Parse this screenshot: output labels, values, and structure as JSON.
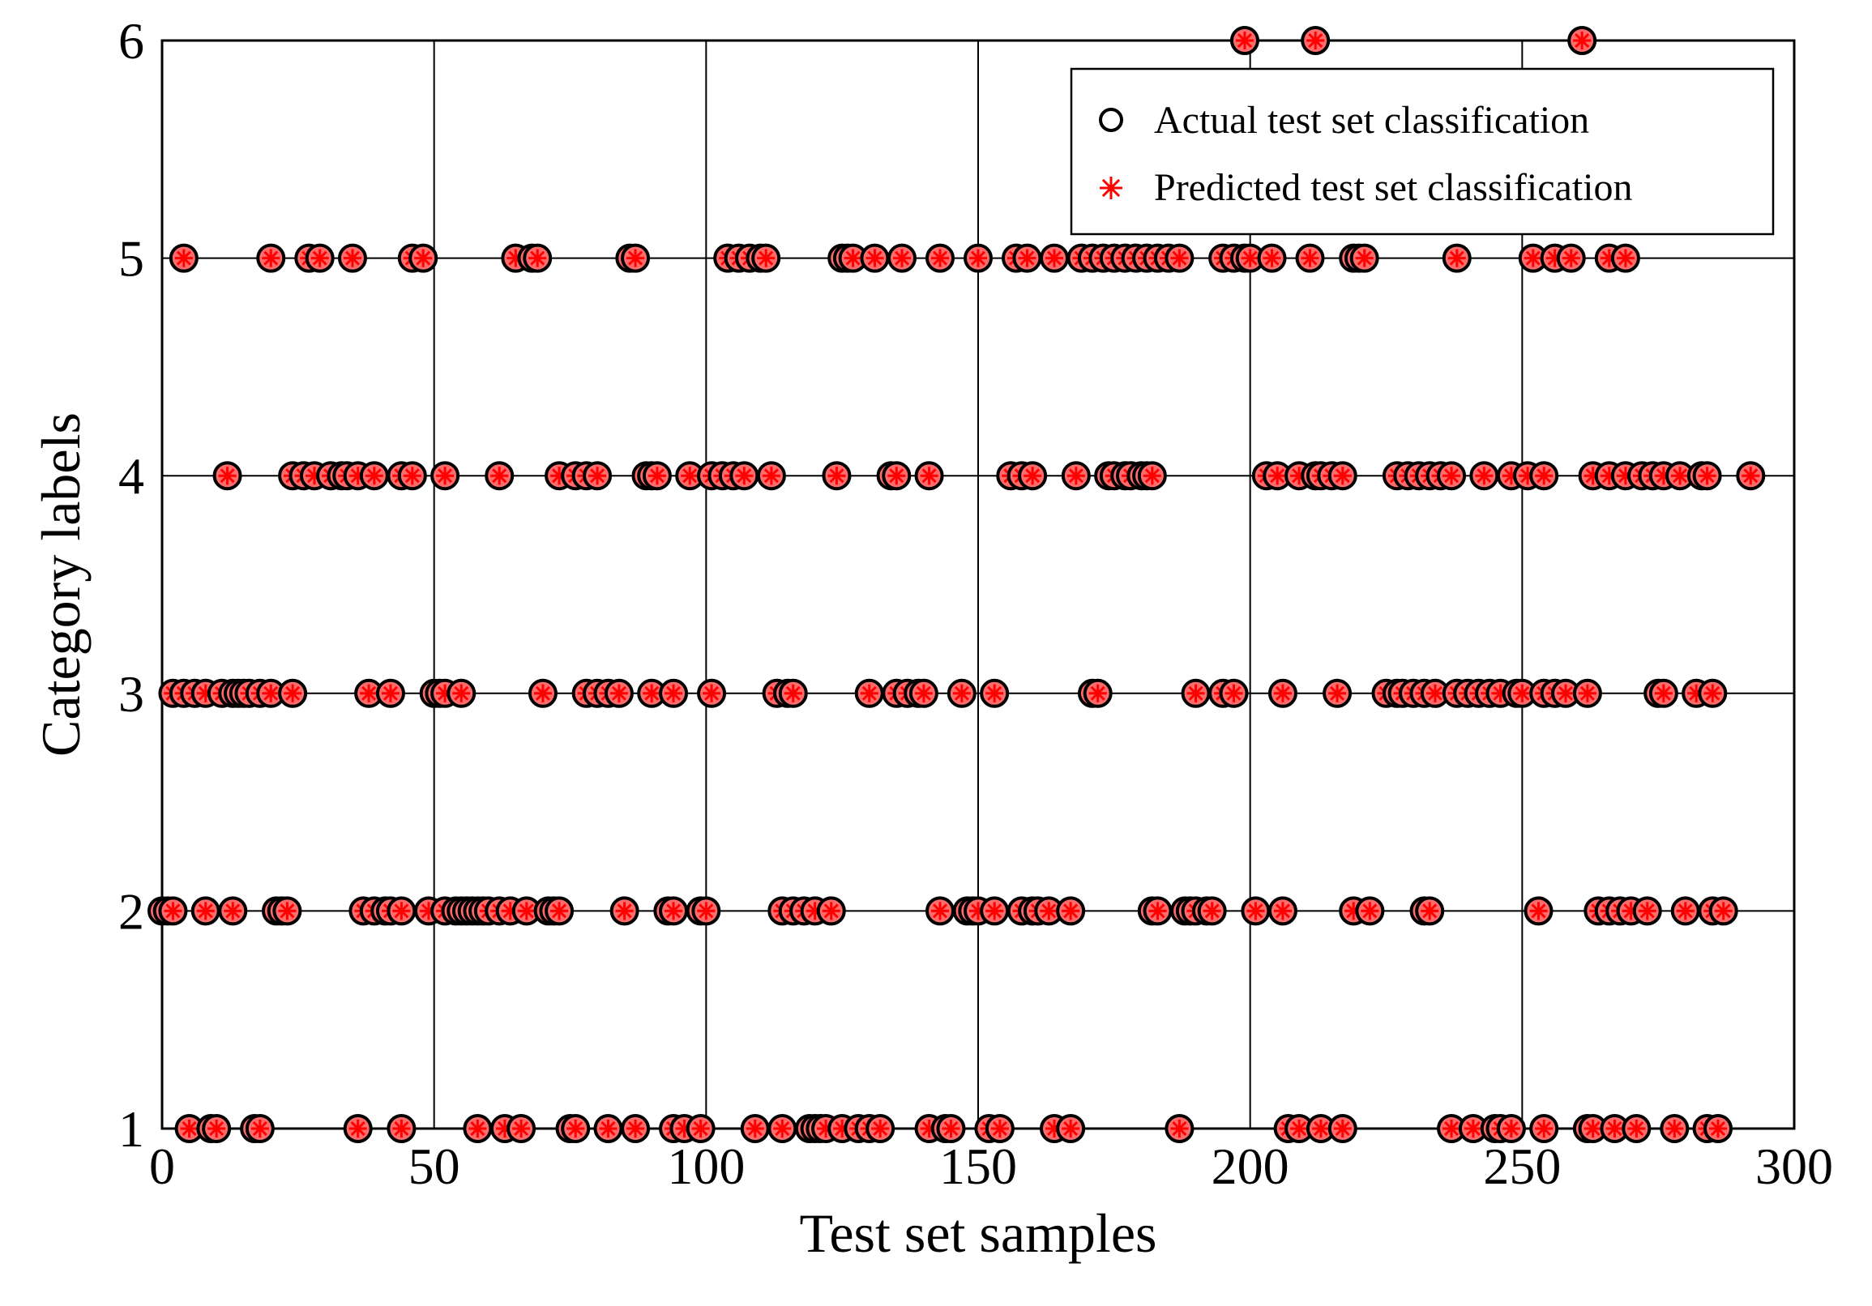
{
  "chart_data": {
    "type": "scatter",
    "xlabel": "Test set samples",
    "ylabel": "Category labels",
    "xlim": [
      0,
      300
    ],
    "ylim": [
      1,
      6
    ],
    "xticks": [
      "0",
      "50",
      "100",
      "150",
      "200",
      "250",
      "300"
    ],
    "yticks": [
      "1",
      "2",
      "3",
      "4",
      "5",
      "6"
    ],
    "grid": true,
    "legend_position": "top-right",
    "colors": {
      "actual": "#000000",
      "predicted": "#ff0000",
      "marker_fill": "#ff6a6a"
    },
    "series": [
      {
        "name": "Actual test set classification",
        "marker": "circle"
      },
      {
        "name": "Predicted test set classification",
        "marker": "asterisk"
      }
    ],
    "points": [
      {
        "label": 6,
        "x": [
          199,
          212,
          261
        ]
      },
      {
        "label": 5,
        "x": [
          4,
          20,
          27,
          29,
          35,
          46,
          48,
          65,
          68,
          69,
          86,
          87,
          104,
          106,
          108,
          110,
          111,
          125,
          126,
          127,
          131,
          136,
          143,
          150,
          157,
          159,
          164,
          169,
          171,
          173,
          175,
          177,
          179,
          181,
          183,
          185,
          187,
          195,
          197,
          199,
          200,
          204,
          211,
          219,
          220,
          221,
          238,
          252,
          256,
          259,
          266,
          269
        ]
      },
      {
        "label": 4,
        "x": [
          12,
          24,
          26,
          28,
          31,
          33,
          34,
          36,
          39,
          44,
          46,
          52,
          62,
          73,
          76,
          78,
          80,
          89,
          90,
          91,
          97,
          101,
          103,
          105,
          107,
          112,
          124,
          134,
          135,
          141,
          156,
          158,
          160,
          168,
          174,
          175,
          177,
          178,
          180,
          181,
          182,
          203,
          205,
          209,
          212,
          213,
          215,
          217,
          227,
          229,
          231,
          233,
          235,
          237,
          243,
          248,
          251,
          254,
          263,
          266,
          269,
          272,
          274,
          276,
          279,
          283,
          284,
          292
        ]
      },
      {
        "label": 3,
        "x": [
          2,
          4,
          6,
          8,
          11,
          13,
          14,
          15,
          16,
          18,
          20,
          24,
          38,
          42,
          50,
          51,
          52,
          55,
          70,
          78,
          80,
          82,
          84,
          90,
          94,
          101,
          113,
          115,
          116,
          130,
          135,
          137,
          139,
          140,
          147,
          153,
          171,
          172,
          190,
          195,
          197,
          206,
          216,
          225,
          227,
          228,
          230,
          232,
          234,
          238,
          240,
          242,
          244,
          246,
          249,
          250,
          254,
          256,
          258,
          262,
          275,
          276,
          282,
          285
        ]
      },
      {
        "label": 2,
        "x": [
          0,
          1,
          2,
          8,
          13,
          21,
          22,
          23,
          37,
          39,
          41,
          42,
          44,
          49,
          52,
          54,
          55,
          56,
          57,
          58,
          59,
          60,
          62,
          64,
          67,
          71,
          72,
          73,
          85,
          93,
          94,
          99,
          100,
          114,
          116,
          118,
          120,
          123,
          143,
          148,
          149,
          150,
          153,
          158,
          160,
          161,
          163,
          167,
          182,
          183,
          188,
          189,
          190,
          192,
          193,
          201,
          206,
          219,
          222,
          232,
          233,
          253,
          264,
          266,
          268,
          270,
          273,
          280,
          285,
          287
        ]
      },
      {
        "label": 1,
        "x": [
          5,
          9,
          10,
          17,
          18,
          36,
          44,
          58,
          63,
          66,
          75,
          76,
          82,
          87,
          94,
          96,
          99,
          109,
          114,
          119,
          120,
          121,
          122,
          125,
          128,
          130,
          132,
          141,
          144,
          145,
          152,
          154,
          164,
          167,
          187,
          207,
          209,
          213,
          217,
          237,
          241,
          245,
          246,
          248,
          254,
          262,
          263,
          267,
          271,
          278,
          284,
          286
        ]
      }
    ]
  }
}
